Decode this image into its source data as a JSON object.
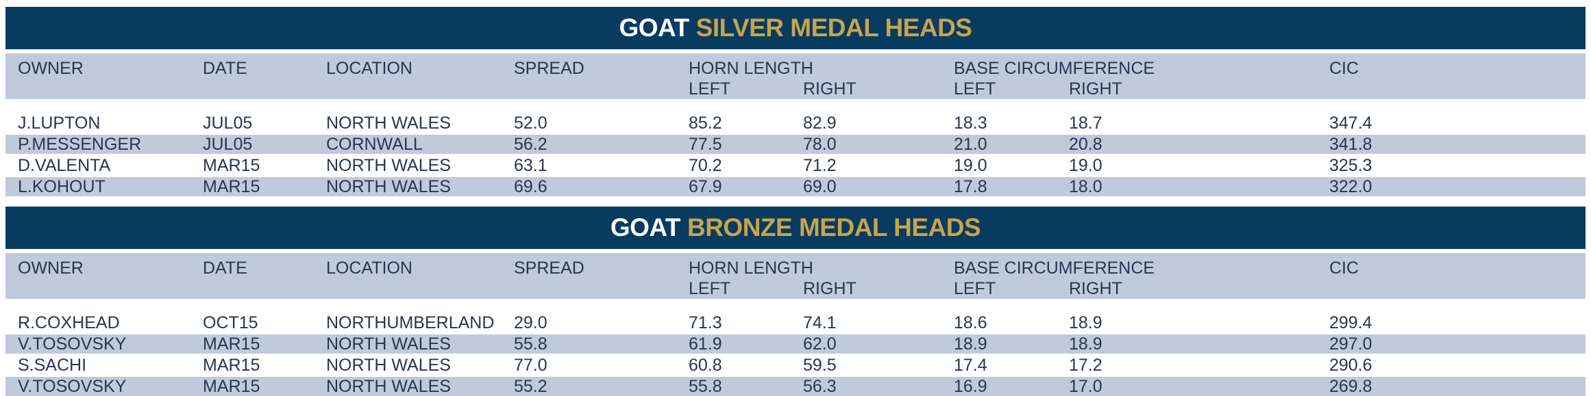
{
  "tables": [
    {
      "title_lead": "GOAT",
      "title_accent": "SILVER MEDAL HEADS",
      "headers": {
        "owner": "OWNER",
        "date": "DATE",
        "location": "LOCATION",
        "spread": "SPREAD",
        "horn_length": "HORN LENGTH",
        "horn_left": "LEFT",
        "horn_right": "RIGHT",
        "base_circ": "BASE CIRCUMFERENCE",
        "base_left": "LEFT",
        "base_right": "RIGHT",
        "cic": "CIC"
      },
      "rows": [
        {
          "owner": "J.LUPTON",
          "date": "JUL05",
          "location": "NORTH WALES",
          "spread": "52.0",
          "horn_left": "85.2",
          "horn_right": "82.9",
          "base_left": "18.3",
          "base_right": "18.7",
          "cic": "347.4"
        },
        {
          "owner": "P.MESSENGER",
          "date": "JUL05",
          "location": "CORNWALL",
          "spread": "56.2",
          "horn_left": "77.5",
          "horn_right": "78.0",
          "base_left": "21.0",
          "base_right": "20.8",
          "cic": "341.8"
        },
        {
          "owner": "D.VALENTA",
          "date": "MAR15",
          "location": "NORTH WALES",
          "spread": "63.1",
          "horn_left": "70.2",
          "horn_right": "71.2",
          "base_left": "19.0",
          "base_right": "19.0",
          "cic": "325.3"
        },
        {
          "owner": "L.KOHOUT",
          "date": "MAR15",
          "location": "NORTH WALES",
          "spread": "69.6",
          "horn_left": "67.9",
          "horn_right": "69.0",
          "base_left": "17.8",
          "base_right": "18.0",
          "cic": "322.0"
        }
      ]
    },
    {
      "title_lead": "GOAT",
      "title_accent": "BRONZE MEDAL HEADS",
      "headers": {
        "owner": "OWNER",
        "date": "DATE",
        "location": "LOCATION",
        "spread": "SPREAD",
        "horn_length": "HORN LENGTH",
        "horn_left": "LEFT",
        "horn_right": "RIGHT",
        "base_circ": "BASE CIRCUMFERENCE",
        "base_left": "LEFT",
        "base_right": "RIGHT",
        "cic": "CIC"
      },
      "rows": [
        {
          "owner": "R.COXHEAD",
          "date": "OCT15",
          "location": "NORTHUMBERLAND",
          "spread": "29.0",
          "horn_left": "71.3",
          "horn_right": "74.1",
          "base_left": "18.6",
          "base_right": "18.9",
          "cic": "299.4"
        },
        {
          "owner": "V.TOSOVSKY",
          "date": "MAR15",
          "location": "NORTH WALES",
          "spread": "55.8",
          "horn_left": "61.9",
          "horn_right": "62.0",
          "base_left": "18.9",
          "base_right": "18.9",
          "cic": "297.0"
        },
        {
          "owner": "S.SACHI",
          "date": "MAR15",
          "location": "NORTH WALES",
          "spread": "77.0",
          "horn_left": "60.8",
          "horn_right": "59.5",
          "base_left": "17.4",
          "base_right": "17.2",
          "cic": "290.6"
        },
        {
          "owner": "V.TOSOVSKY",
          "date": "MAR15",
          "location": "NORTH WALES",
          "spread": "55.2",
          "horn_left": "55.8",
          "horn_right": "56.3",
          "base_left": "16.9",
          "base_right": "17.0",
          "cic": "269.8"
        }
      ]
    }
  ],
  "colors": {
    "title_bg": "#083b60",
    "title_accent": "#c9a44c",
    "band": "#c0cadb",
    "text": "#2a3550"
  }
}
